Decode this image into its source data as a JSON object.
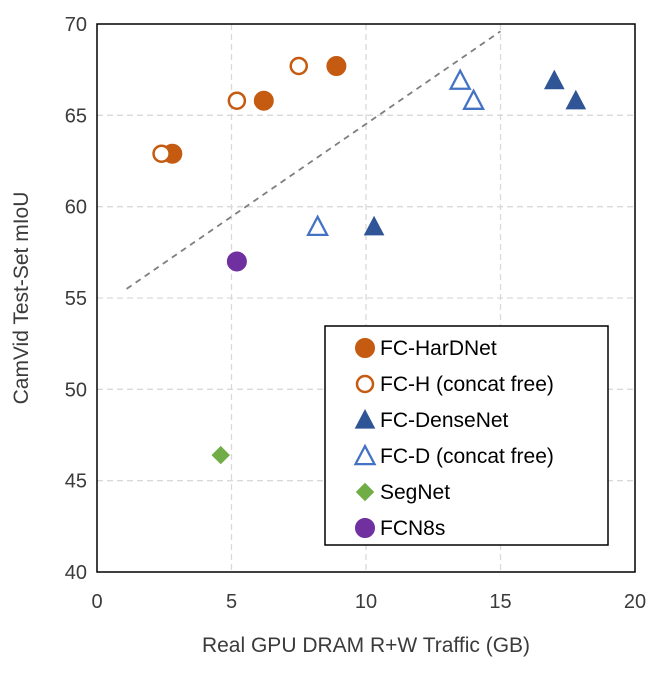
{
  "chart_data": {
    "type": "scatter",
    "title": "",
    "xlabel": "Real GPU DRAM R+W Traffic (GB)",
    "ylabel": "CamVid Test-Set mIoU",
    "xlim": [
      0,
      20
    ],
    "ylim": [
      40,
      70
    ],
    "x_ticks": [
      0,
      5,
      10,
      15,
      20
    ],
    "y_ticks": [
      40,
      45,
      50,
      55,
      60,
      65,
      70
    ],
    "x_tick_labels": [
      "0",
      "5",
      "10",
      "15",
      "20"
    ],
    "y_tick_labels": [
      "40",
      "45",
      "50",
      "55",
      "60",
      "65",
      "70"
    ],
    "grid": true,
    "legend_position": "bottom-right",
    "series": [
      {
        "name": "FC-HarDNet",
        "marker": "circle",
        "filled": true,
        "color": "#C55A11",
        "points": [
          {
            "x": 2.8,
            "y": 62.9
          },
          {
            "x": 6.2,
            "y": 65.8
          },
          {
            "x": 8.9,
            "y": 67.7
          }
        ]
      },
      {
        "name": "FC-H (concat free)",
        "marker": "circle",
        "filled": false,
        "color": "#C55A11",
        "points": [
          {
            "x": 2.4,
            "y": 62.9
          },
          {
            "x": 5.2,
            "y": 65.8
          },
          {
            "x": 7.5,
            "y": 67.7
          }
        ]
      },
      {
        "name": "FC-DenseNet",
        "marker": "triangle",
        "filled": true,
        "color": "#2F5597",
        "points": [
          {
            "x": 10.3,
            "y": 58.9
          },
          {
            "x": 17.0,
            "y": 66.9
          },
          {
            "x": 17.8,
            "y": 65.8
          }
        ]
      },
      {
        "name": "FC-D (concat free)",
        "marker": "triangle",
        "filled": false,
        "color": "#4472C4",
        "points": [
          {
            "x": 8.2,
            "y": 58.9
          },
          {
            "x": 13.5,
            "y": 66.9
          },
          {
            "x": 14.0,
            "y": 65.8
          }
        ]
      },
      {
        "name": "SegNet",
        "marker": "diamond",
        "filled": true,
        "color": "#70AD47",
        "points": [
          {
            "x": 4.6,
            "y": 46.4
          }
        ]
      },
      {
        "name": "FCN8s",
        "marker": "circle",
        "filled": true,
        "color": "#7030A0",
        "points": [
          {
            "x": 5.2,
            "y": 57.0
          }
        ]
      }
    ],
    "trendline": {
      "style": "dashed",
      "color": "#7F7F7F",
      "x": [
        1.1,
        15.0
      ],
      "y": [
        55.5,
        69.6
      ]
    }
  }
}
